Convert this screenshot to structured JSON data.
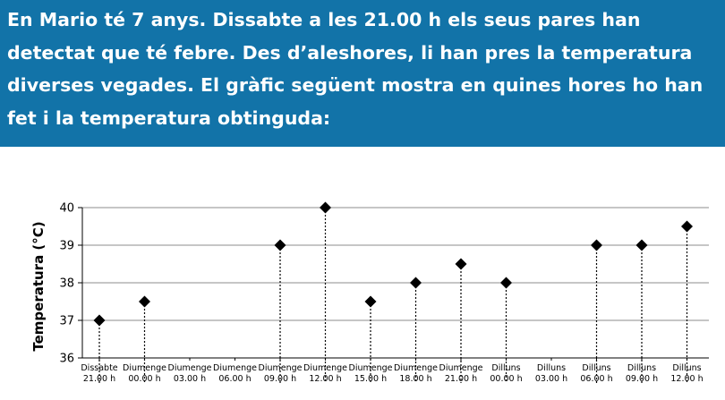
{
  "header": {
    "text": "En Mario té 7 anys. Dissabte a les 21.00 h els seus pares han detectat que té febre. Des d’aleshores, li han pres la temperatura diverses vegades. El gràfic següent mostra en quines hores ho han fet i la temperatura obtinguda:"
  },
  "colors": {
    "header_bg": "#1273a8",
    "header_text": "#ffffff",
    "marker": "#000000"
  },
  "chart_data": {
    "type": "scatter",
    "title": "",
    "ylabel": "Temperatura (°C)",
    "xlabel": "",
    "ylim": [
      36,
      40
    ],
    "yticks": [
      36,
      37,
      38,
      39,
      40
    ],
    "grid": true,
    "categories": [
      {
        "day": "Dissabte",
        "time": "21.00 h"
      },
      {
        "day": "Diumenge",
        "time": "00.00 h"
      },
      {
        "day": "Diumenge",
        "time": "03.00 h"
      },
      {
        "day": "Diumenge",
        "time": "06.00 h"
      },
      {
        "day": "Diumenge",
        "time": "09.00 h"
      },
      {
        "day": "Diumenge",
        "time": "12.00 h"
      },
      {
        "day": "Diumenge",
        "time": "15.00 h"
      },
      {
        "day": "Diumenge",
        "time": "18.00 h"
      },
      {
        "day": "Diumenge",
        "time": "21.00 h"
      },
      {
        "day": "Dilluns",
        "time": "00.00 h"
      },
      {
        "day": "Dilluns",
        "time": "03.00 h"
      },
      {
        "day": "Dilluns",
        "time": "06.00 h"
      },
      {
        "day": "Dilluns",
        "time": "09.00 h"
      },
      {
        "day": "Dilluns",
        "time": "12.00 h"
      }
    ],
    "values": [
      37,
      37.5,
      null,
      null,
      39,
      40,
      37.5,
      38,
      38.5,
      38,
      null,
      39,
      39,
      39.5
    ]
  }
}
